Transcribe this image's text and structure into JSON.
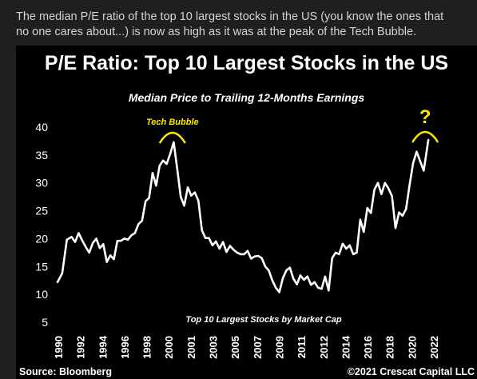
{
  "post": {
    "line1": "The median P/E ratio of the top 10 largest stocks in the US (you know the ones that",
    "line2": "no one cares about...) is now as high as it was at the peak of the Tech Bubble."
  },
  "figure": {
    "title": "P/E Ratio: Top 10 Largest Stocks in the US",
    "subtitle": "Median Price to Trailing 12-Months Earnings",
    "source": "Source: Bloomberg",
    "credit": "©2021 Crescat Capital LLC",
    "colors": {
      "background": "#000000",
      "line": "#ffffff",
      "annotation": "#ffeb00",
      "page": "#1f1f1f"
    }
  },
  "chart_data": {
    "type": "line",
    "title": "P/E Ratio: Top 10 Largest Stocks in the US",
    "subtitle": "Median Price to Trailing 12-Months Earnings",
    "xlabel": "Top 10 Largest Stocks by Market Cap",
    "ylabel": "",
    "ylim": [
      5,
      40
    ],
    "xlim": [
      1990,
      2022
    ],
    "yticks": [
      40,
      35,
      30,
      25,
      20,
      15,
      10,
      5
    ],
    "xticks": [
      "1990",
      "1992",
      "1994",
      "1996",
      "1998",
      "2000",
      "2001",
      "2003",
      "2005",
      "2007",
      "2009",
      "2011",
      "2012",
      "2014",
      "2016",
      "2018",
      "2020",
      "2022"
    ],
    "grid": false,
    "legend": "none",
    "annotations": [
      {
        "text": "Tech Bubble",
        "x": 2000.2,
        "y": 37
      },
      {
        "text": "?",
        "x": 2021.6,
        "y": 37
      }
    ],
    "series": [
      {
        "values": [
          [
            1990.0,
            12.2
          ],
          [
            1990.4,
            13.8
          ],
          [
            1990.8,
            19.8
          ],
          [
            1991.2,
            20.3
          ],
          [
            1991.5,
            19.4
          ],
          [
            1991.8,
            21.0
          ],
          [
            1992.1,
            19.7
          ],
          [
            1992.4,
            18.5
          ],
          [
            1992.7,
            17.5
          ],
          [
            1993.0,
            19.2
          ],
          [
            1993.3,
            20.0
          ],
          [
            1993.6,
            18.3
          ],
          [
            1993.9,
            19.0
          ],
          [
            1994.2,
            15.8
          ],
          [
            1994.5,
            17.0
          ],
          [
            1994.8,
            16.3
          ],
          [
            1995.1,
            19.6
          ],
          [
            1995.4,
            19.6
          ],
          [
            1995.7,
            20.0
          ],
          [
            1996.0,
            19.8
          ],
          [
            1996.3,
            20.6
          ],
          [
            1996.6,
            21.0
          ],
          [
            1996.9,
            22.6
          ],
          [
            1997.2,
            23.2
          ],
          [
            1997.5,
            26.7
          ],
          [
            1997.8,
            27.3
          ],
          [
            1998.1,
            31.8
          ],
          [
            1998.4,
            29.5
          ],
          [
            1998.7,
            33.1
          ],
          [
            1999.0,
            34.0
          ],
          [
            1999.3,
            33.4
          ],
          [
            1999.6,
            35.2
          ],
          [
            1999.9,
            37.3
          ],
          [
            2000.2,
            32.5
          ],
          [
            2000.5,
            27.5
          ],
          [
            2000.8,
            25.9
          ],
          [
            2001.1,
            29.2
          ],
          [
            2001.4,
            27.7
          ],
          [
            2001.7,
            28.3
          ],
          [
            2002.0,
            26.8
          ],
          [
            2002.3,
            21.5
          ],
          [
            2002.6,
            20.1
          ],
          [
            2002.9,
            20.1
          ],
          [
            2003.2,
            18.8
          ],
          [
            2003.5,
            19.5
          ],
          [
            2003.8,
            18.2
          ],
          [
            2004.1,
            19.4
          ],
          [
            2004.4,
            17.6
          ],
          [
            2004.7,
            18.7
          ],
          [
            2005.0,
            18.0
          ],
          [
            2005.3,
            17.5
          ],
          [
            2005.6,
            17.2
          ],
          [
            2005.9,
            17.2
          ],
          [
            2006.2,
            17.8
          ],
          [
            2006.5,
            16.4
          ],
          [
            2006.8,
            16.8
          ],
          [
            2007.1,
            16.9
          ],
          [
            2007.4,
            16.5
          ],
          [
            2007.7,
            15.0
          ],
          [
            2008.0,
            14.3
          ],
          [
            2008.3,
            12.5
          ],
          [
            2008.6,
            11.2
          ],
          [
            2008.9,
            10.4
          ],
          [
            2009.2,
            12.9
          ],
          [
            2009.5,
            14.3
          ],
          [
            2009.8,
            14.8
          ],
          [
            2010.1,
            12.8
          ],
          [
            2010.4,
            11.8
          ],
          [
            2010.7,
            13.4
          ],
          [
            2011.0,
            12.6
          ],
          [
            2011.3,
            13.2
          ],
          [
            2011.6,
            11.7
          ],
          [
            2011.9,
            12.2
          ],
          [
            2012.2,
            11.2
          ],
          [
            2012.5,
            11.0
          ],
          [
            2012.8,
            13.2
          ],
          [
            2013.1,
            10.7
          ],
          [
            2013.4,
            16.5
          ],
          [
            2013.7,
            17.5
          ],
          [
            2014.0,
            17.2
          ],
          [
            2014.3,
            19.1
          ],
          [
            2014.6,
            18.2
          ],
          [
            2014.9,
            18.8
          ],
          [
            2015.2,
            17.2
          ],
          [
            2015.5,
            17.5
          ],
          [
            2015.8,
            23.4
          ],
          [
            2016.1,
            21.2
          ],
          [
            2016.4,
            25.5
          ],
          [
            2016.7,
            24.6
          ],
          [
            2017.0,
            28.8
          ],
          [
            2017.3,
            30.0
          ],
          [
            2017.6,
            28.0
          ],
          [
            2017.9,
            30.0
          ],
          [
            2018.2,
            29.0
          ],
          [
            2018.5,
            27.6
          ],
          [
            2018.8,
            21.9
          ],
          [
            2019.1,
            24.7
          ],
          [
            2019.4,
            24.1
          ],
          [
            2019.7,
            25.3
          ],
          [
            2020.0,
            29.6
          ],
          [
            2020.3,
            33.5
          ],
          [
            2020.6,
            35.6
          ],
          [
            2020.9,
            33.9
          ],
          [
            2021.2,
            32.2
          ],
          [
            2021.6,
            37.7
          ]
        ]
      }
    ]
  }
}
